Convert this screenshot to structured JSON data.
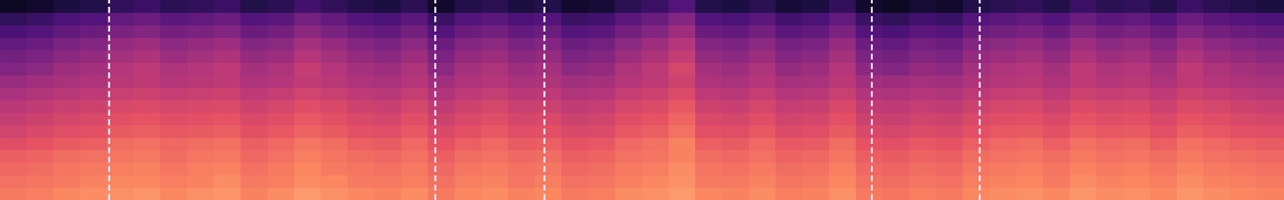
{
  "chart_data": {
    "type": "heatmap",
    "tick_labels": false,
    "grid": false,
    "xlim": [
      0,
      100
    ],
    "ylim": [
      0,
      16
    ],
    "clim": [
      0,
      100
    ],
    "markers": [
      8.5,
      33.9,
      42.4,
      67.9,
      76.3
    ],
    "cells": [
      [
        72,
        73,
        75,
        76,
        77,
        78,
        75,
        77,
        78,
        74,
        76,
        79,
        77,
        75,
        74,
        76,
        72,
        75,
        76,
        74,
        75,
        72,
        73,
        76,
        77,
        79,
        75,
        74,
        76,
        73,
        74,
        77,
        72,
        71,
        73,
        72,
        75,
        76,
        77,
        75,
        78,
        76,
        77,
        75,
        78,
        76,
        75,
        74
      ],
      [
        70,
        71,
        72,
        74,
        75,
        75,
        73,
        74,
        76,
        72,
        73,
        76,
        75,
        72,
        72,
        73,
        70,
        73,
        74,
        71,
        73,
        70,
        71,
        73,
        75,
        77,
        72,
        72,
        74,
        71,
        72,
        75,
        70,
        69,
        71,
        70,
        73,
        74,
        75,
        72,
        76,
        74,
        75,
        73,
        76,
        74,
        73,
        72
      ],
      [
        68,
        69,
        71,
        72,
        73,
        74,
        71,
        73,
        74,
        70,
        72,
        75,
        72,
        71,
        70,
        72,
        68,
        71,
        72,
        70,
        71,
        68,
        69,
        72,
        73,
        76,
        71,
        70,
        72,
        69,
        70,
        73,
        68,
        67,
        69,
        68,
        71,
        72,
        73,
        71,
        74,
        72,
        73,
        71,
        74,
        72,
        71,
        70
      ],
      [
        66,
        67,
        69,
        70,
        71,
        72,
        69,
        71,
        72,
        68,
        70,
        73,
        71,
        69,
        68,
        70,
        66,
        69,
        70,
        68,
        69,
        66,
        67,
        70,
        71,
        74,
        69,
        68,
        70,
        67,
        68,
        71,
        66,
        65,
        67,
        66,
        69,
        70,
        71,
        69,
        72,
        70,
        71,
        69,
        72,
        70,
        69,
        68
      ],
      [
        61,
        63,
        65,
        66,
        69,
        70,
        68,
        69,
        70,
        66,
        68,
        71,
        69,
        66,
        65,
        68,
        63,
        66,
        68,
        65,
        66,
        63,
        64,
        68,
        70,
        74,
        66,
        65,
        68,
        64,
        65,
        69,
        63,
        62,
        64,
        63,
        66,
        68,
        69,
        66,
        70,
        68,
        69,
        66,
        70,
        68,
        66,
        65
      ],
      [
        57,
        59,
        61,
        62,
        65,
        66,
        64,
        65,
        66,
        62,
        64,
        67,
        65,
        62,
        61,
        64,
        59,
        62,
        64,
        61,
        62,
        59,
        60,
        64,
        66,
        70,
        62,
        61,
        64,
        60,
        61,
        65,
        59,
        58,
        60,
        59,
        62,
        64,
        65,
        62,
        66,
        64,
        65,
        62,
        66,
        64,
        62,
        61
      ],
      [
        54,
        56,
        58,
        59,
        62,
        63,
        61,
        62,
        63,
        59,
        61,
        64,
        62,
        59,
        58,
        61,
        56,
        59,
        61,
        58,
        59,
        56,
        57,
        61,
        63,
        67,
        59,
        58,
        61,
        57,
        58,
        62,
        56,
        55,
        57,
        56,
        59,
        61,
        62,
        59,
        63,
        61,
        62,
        59,
        63,
        61,
        59,
        58
      ],
      [
        51,
        53,
        55,
        56,
        59,
        60,
        58,
        59,
        60,
        56,
        58,
        61,
        59,
        56,
        55,
        58,
        53,
        56,
        58,
        55,
        56,
        53,
        54,
        58,
        60,
        64,
        56,
        55,
        58,
        54,
        55,
        59,
        53,
        52,
        54,
        53,
        56,
        58,
        59,
        56,
        60,
        58,
        59,
        56,
        60,
        58,
        56,
        55
      ],
      [
        47,
        49,
        51,
        52,
        55,
        56,
        54,
        55,
        56,
        52,
        54,
        57,
        55,
        52,
        51,
        54,
        49,
        52,
        54,
        51,
        52,
        49,
        50,
        54,
        56,
        60,
        52,
        51,
        54,
        50,
        51,
        55,
        49,
        48,
        50,
        49,
        52,
        54,
        55,
        52,
        56,
        54,
        55,
        52,
        56,
        54,
        52,
        51
      ],
      [
        43,
        45,
        47,
        48,
        51,
        52,
        50,
        51,
        52,
        48,
        50,
        53,
        51,
        48,
        47,
        50,
        45,
        48,
        50,
        47,
        48,
        45,
        46,
        50,
        52,
        56,
        48,
        47,
        50,
        46,
        47,
        51,
        45,
        44,
        46,
        45,
        48,
        50,
        51,
        48,
        52,
        50,
        51,
        48,
        52,
        50,
        48,
        47
      ],
      [
        38,
        40,
        44,
        46,
        50,
        52,
        48,
        50,
        52,
        46,
        48,
        54,
        50,
        46,
        44,
        48,
        40,
        46,
        48,
        44,
        46,
        40,
        42,
        48,
        52,
        58,
        46,
        44,
        48,
        42,
        44,
        50,
        40,
        38,
        42,
        40,
        46,
        48,
        50,
        46,
        52,
        48,
        50,
        46,
        52,
        48,
        46,
        44
      ],
      [
        34,
        36,
        40,
        42,
        46,
        48,
        44,
        46,
        48,
        42,
        44,
        50,
        46,
        42,
        40,
        44,
        36,
        42,
        44,
        40,
        42,
        36,
        38,
        44,
        48,
        54,
        42,
        40,
        44,
        38,
        40,
        46,
        36,
        34,
        38,
        36,
        42,
        44,
        46,
        42,
        48,
        44,
        46,
        42,
        48,
        44,
        42,
        40
      ],
      [
        30,
        32,
        36,
        38,
        42,
        44,
        40,
        42,
        44,
        38,
        40,
        46,
        42,
        38,
        36,
        40,
        32,
        38,
        40,
        36,
        38,
        32,
        34,
        40,
        44,
        50,
        38,
        36,
        40,
        34,
        36,
        42,
        32,
        30,
        34,
        32,
        38,
        40,
        42,
        38,
        44,
        40,
        42,
        38,
        44,
        40,
        38,
        36
      ],
      [
        24,
        26,
        30,
        32,
        36,
        38,
        34,
        36,
        38,
        32,
        34,
        40,
        36,
        32,
        30,
        34,
        26,
        32,
        34,
        30,
        32,
        26,
        28,
        34,
        38,
        44,
        32,
        30,
        34,
        28,
        30,
        36,
        26,
        24,
        28,
        26,
        32,
        34,
        36,
        32,
        38,
        34,
        36,
        32,
        38,
        34,
        32,
        30
      ],
      [
        18,
        20,
        24,
        26,
        30,
        32,
        28,
        30,
        32,
        26,
        28,
        34,
        30,
        26,
        24,
        28,
        20,
        26,
        28,
        24,
        26,
        20,
        22,
        28,
        32,
        38,
        26,
        24,
        28,
        22,
        24,
        30,
        20,
        18,
        22,
        20,
        26,
        28,
        30,
        26,
        32,
        28,
        30,
        26,
        32,
        28,
        26,
        24
      ],
      [
        6,
        8,
        12,
        14,
        18,
        20,
        16,
        18,
        20,
        14,
        16,
        22,
        18,
        14,
        12,
        16,
        8,
        14,
        16,
        12,
        14,
        8,
        10,
        16,
        20,
        26,
        14,
        12,
        16,
        10,
        12,
        18,
        8,
        6,
        10,
        8,
        14,
        16,
        18,
        14,
        20,
        16,
        18,
        14,
        20,
        16,
        14,
        12
      ]
    ]
  }
}
